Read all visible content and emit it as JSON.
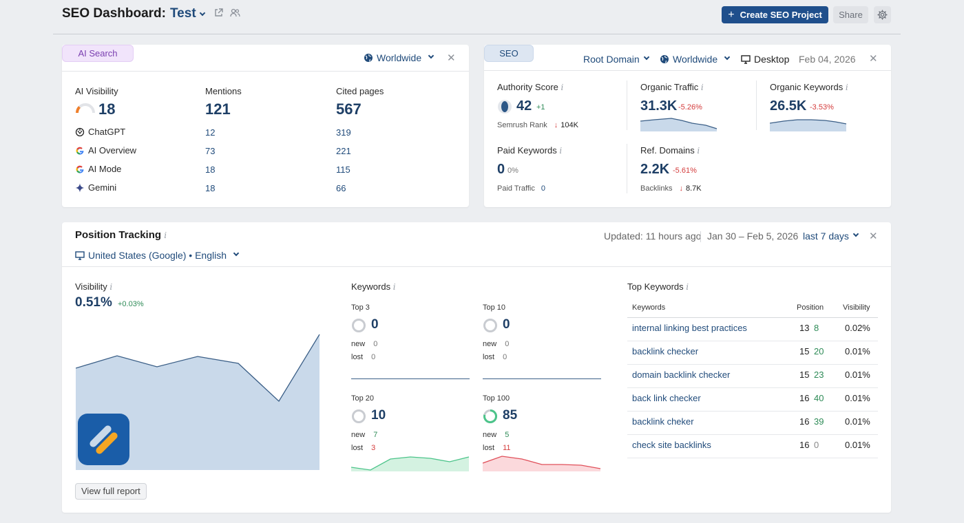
{
  "header": {
    "title_prefix": "SEO Dashboard:",
    "project_name": "Test",
    "create_button": "Create SEO Project",
    "create_plus": "+",
    "share_button": "Share"
  },
  "ai_search": {
    "tag": "AI Search",
    "region": "Worldwide",
    "visibility_label": "AI Visibility",
    "visibility_value": "18",
    "mentions_label": "Mentions",
    "mentions_value": "121",
    "cited_label": "Cited pages",
    "cited_value": "567",
    "rows": [
      {
        "name": "ChatGPT",
        "mentions": "12",
        "cited": "319"
      },
      {
        "name": "AI Overview",
        "mentions": "73",
        "cited": "221"
      },
      {
        "name": "AI Mode",
        "mentions": "18",
        "cited": "115"
      },
      {
        "name": "Gemini",
        "mentions": "18",
        "cited": "66"
      }
    ]
  },
  "seo": {
    "tag": "SEO",
    "root_domain": "Root Domain",
    "region": "Worldwide",
    "device": "Desktop",
    "date": "Feb 04, 2026",
    "authority_label": "Authority Score",
    "authority_value": "42",
    "authority_change": "+1",
    "semrush_rank_label": "Semrush Rank",
    "semrush_rank_value": "104K",
    "organic_traffic_label": "Organic Traffic",
    "organic_traffic_value": "31.3K",
    "organic_traffic_change": "-5.26%",
    "organic_keywords_label": "Organic Keywords",
    "organic_keywords_value": "26.5K",
    "organic_keywords_change": "-3.53%",
    "paid_keywords_label": "Paid Keywords",
    "paid_keywords_value": "0",
    "paid_keywords_change": "0%",
    "paid_traffic_label": "Paid Traffic",
    "paid_traffic_value": "0",
    "ref_domains_label": "Ref. Domains",
    "ref_domains_value": "2.2K",
    "ref_domains_change": "-5.61%",
    "backlinks_label": "Backlinks",
    "backlinks_value": "8.7K"
  },
  "position_tracking": {
    "title": "Position Tracking",
    "updated": "Updated: 11 hours ago",
    "date_range": "Jan 30 – Feb 5, 2026",
    "period": "last 7 days",
    "location": "United States (Google) • English",
    "visibility_label": "Visibility",
    "visibility_value": "0.51%",
    "visibility_change": "+0.03%",
    "view_full_report": "View full report",
    "keywords_label": "Keywords",
    "buckets": [
      {
        "label": "Top 3",
        "value": "0",
        "new_label": "new",
        "new": "0",
        "lost_label": "lost",
        "lost": "0"
      },
      {
        "label": "Top 10",
        "value": "0",
        "new_label": "new",
        "new": "0",
        "lost_label": "lost",
        "lost": "0"
      },
      {
        "label": "Top 20",
        "value": "10",
        "new_label": "new",
        "new": "7",
        "lost_label": "lost",
        "lost": "3"
      },
      {
        "label": "Top 100",
        "value": "85",
        "new_label": "new",
        "new": "5",
        "lost_label": "lost",
        "lost": "11"
      }
    ],
    "top_keywords_label": "Top Keywords",
    "table_headers": {
      "keywords": "Keywords",
      "position": "Position",
      "visibility": "Visibility"
    },
    "top_keywords": [
      {
        "keyword": "internal linking best practices",
        "pos": "13",
        "change": "8",
        "visibility": "0.02%"
      },
      {
        "keyword": "backlink checker",
        "pos": "15",
        "change": "20",
        "visibility": "0.01%"
      },
      {
        "keyword": "domain backlink checker",
        "pos": "15",
        "change": "23",
        "visibility": "0.01%"
      },
      {
        "keyword": "back link checker",
        "pos": "16",
        "change": "40",
        "visibility": "0.01%"
      },
      {
        "keyword": "backlink cheker",
        "pos": "16",
        "change": "39",
        "visibility": "0.01%"
      },
      {
        "keyword": "check site backlinks",
        "pos": "16",
        "change": "0",
        "visibility": "0.01%"
      }
    ]
  },
  "colors": {
    "primary": "#1f4f8c",
    "link": "#1f4a7a",
    "negative": "#d43b3b",
    "positive": "#2e8b57",
    "chart_fill": "#c9d9ea",
    "chart_line": "#3a5e86",
    "ai_tag_bg": "#f1e4fb",
    "seo_tag_bg": "#dde6f2"
  }
}
